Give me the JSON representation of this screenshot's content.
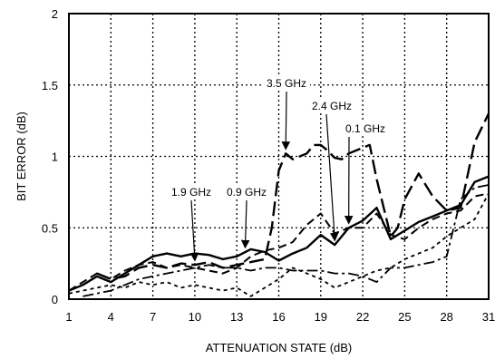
{
  "chart_data": {
    "type": "line",
    "xlabel": "ATTENUATION STATE (dB)",
    "ylabel": "BIT ERROR (dB)",
    "xlim": [
      1,
      31
    ],
    "ylim": [
      0,
      2
    ],
    "x_ticks": [
      "1",
      "4",
      "7",
      "10",
      "13",
      "16",
      "19",
      "22",
      "25",
      "28",
      "31"
    ],
    "y_ticks": [
      "0",
      "0.5",
      "1",
      "1.5",
      "2"
    ],
    "grid": true,
    "series": [
      {
        "dash": "solid",
        "points": [
          [
            1,
            0.06
          ],
          [
            2,
            0.1
          ],
          [
            3,
            0.16
          ],
          [
            4,
            0.12
          ],
          [
            5,
            0.18
          ],
          [
            6,
            0.24
          ],
          [
            7,
            0.3
          ],
          [
            8,
            0.32
          ],
          [
            9,
            0.3
          ],
          [
            10,
            0.32
          ],
          [
            11,
            0.31
          ],
          [
            12,
            0.28
          ],
          [
            13,
            0.3
          ],
          [
            14,
            0.35
          ],
          [
            15,
            0.33
          ],
          [
            16,
            0.27
          ],
          [
            17,
            0.32
          ],
          [
            18,
            0.36
          ],
          [
            19,
            0.45
          ],
          [
            20,
            0.38
          ],
          [
            21,
            0.5
          ],
          [
            22,
            0.55
          ],
          [
            23,
            0.64
          ],
          [
            24,
            0.42
          ],
          [
            25,
            0.48
          ],
          [
            26,
            0.54
          ],
          [
            27,
            0.58
          ],
          [
            28,
            0.62
          ],
          [
            29,
            0.66
          ],
          [
            30,
            0.82
          ],
          [
            31,
            0.86
          ]
        ]
      },
      {
        "dash": "long",
        "points": [
          [
            3,
            0.18
          ],
          [
            4,
            0.14
          ],
          [
            5,
            0.16
          ],
          [
            6,
            0.22
          ],
          [
            7,
            0.24
          ],
          [
            8,
            0.22
          ],
          [
            9,
            0.25
          ],
          [
            10,
            0.24
          ],
          [
            11,
            0.26
          ],
          [
            12,
            0.22
          ],
          [
            13,
            0.24
          ],
          [
            14,
            0.26
          ],
          [
            15,
            0.28
          ],
          [
            15.5,
            0.5
          ],
          [
            16,
            0.9
          ],
          [
            16.5,
            1.02
          ],
          [
            17,
            0.98
          ],
          [
            18,
            1.02
          ],
          [
            18.5,
            1.08
          ],
          [
            19,
            1.08
          ],
          [
            19.5,
            1.04
          ],
          [
            20,
            0.99
          ],
          [
            20.5,
            0.98
          ],
          [
            21,
            1.02
          ],
          [
            22,
            1.06
          ],
          [
            22.5,
            1.08
          ],
          [
            23,
            0.84
          ],
          [
            24,
            0.44
          ],
          [
            24.5,
            0.5
          ],
          [
            25,
            0.7
          ],
          [
            26,
            0.88
          ],
          [
            27,
            0.72
          ],
          [
            28,
            0.62
          ],
          [
            29,
            0.64
          ],
          [
            30,
            1.1
          ],
          [
            31,
            1.3
          ]
        ]
      },
      {
        "dash": "medium",
        "points": [
          [
            1,
            0.06
          ],
          [
            3,
            0.18
          ],
          [
            4,
            0.14
          ],
          [
            5,
            0.2
          ],
          [
            6,
            0.24
          ],
          [
            7,
            0.26
          ],
          [
            8,
            0.22
          ],
          [
            9,
            0.24
          ],
          [
            10,
            0.22
          ],
          [
            11,
            0.2
          ],
          [
            12,
            0.18
          ],
          [
            13,
            0.22
          ],
          [
            14,
            0.3
          ],
          [
            15,
            0.34
          ],
          [
            16,
            0.36
          ],
          [
            17,
            0.4
          ],
          [
            18,
            0.52
          ],
          [
            19,
            0.6
          ],
          [
            20,
            0.46
          ],
          [
            21,
            0.5
          ],
          [
            22,
            0.5
          ],
          [
            23,
            0.6
          ],
          [
            24,
            0.45
          ],
          [
            25,
            0.42
          ],
          [
            26,
            0.5
          ],
          [
            27,
            0.56
          ],
          [
            28,
            0.6
          ],
          [
            29,
            0.62
          ],
          [
            30,
            0.72
          ],
          [
            31,
            0.74
          ]
        ]
      },
      {
        "dash": "short",
        "points": [
          [
            1,
            0.04
          ],
          [
            2,
            0.06
          ],
          [
            3,
            0.08
          ],
          [
            4,
            0.1
          ],
          [
            5,
            0.08
          ],
          [
            6,
            0.12
          ],
          [
            7,
            0.1
          ],
          [
            8,
            0.12
          ],
          [
            9,
            0.08
          ],
          [
            10,
            0.1
          ],
          [
            11,
            0.08
          ],
          [
            12,
            0.06
          ],
          [
            13,
            0.08
          ],
          [
            14,
            0.02
          ],
          [
            15,
            0.08
          ],
          [
            16,
            0.14
          ],
          [
            17,
            0.22
          ],
          [
            18,
            0.18
          ],
          [
            19,
            0.14
          ],
          [
            20,
            0.08
          ],
          [
            21,
            0.12
          ],
          [
            22,
            0.16
          ],
          [
            23,
            0.2
          ],
          [
            24,
            0.22
          ],
          [
            25,
            0.28
          ],
          [
            26,
            0.32
          ],
          [
            27,
            0.36
          ],
          [
            28,
            0.44
          ],
          [
            29,
            0.5
          ],
          [
            30,
            0.56
          ],
          [
            31,
            0.74
          ]
        ]
      },
      {
        "dash": "dashdot",
        "points": [
          [
            2,
            0.02
          ],
          [
            3,
            0.04
          ],
          [
            4,
            0.06
          ],
          [
            5,
            0.1
          ],
          [
            6,
            0.14
          ],
          [
            7,
            0.16
          ],
          [
            8,
            0.18
          ],
          [
            9,
            0.2
          ],
          [
            10,
            0.22
          ],
          [
            11,
            0.24
          ],
          [
            12,
            0.22
          ],
          [
            13,
            0.22
          ],
          [
            14,
            0.2
          ],
          [
            15,
            0.22
          ],
          [
            16,
            0.22
          ],
          [
            17,
            0.2
          ],
          [
            18,
            0.2
          ],
          [
            19,
            0.2
          ],
          [
            20,
            0.18
          ],
          [
            21,
            0.18
          ],
          [
            22,
            0.16
          ],
          [
            23,
            0.12
          ],
          [
            24,
            0.22
          ],
          [
            25,
            0.22
          ],
          [
            26,
            0.24
          ],
          [
            27,
            0.26
          ],
          [
            28,
            0.3
          ],
          [
            29,
            0.7
          ],
          [
            30,
            0.78
          ],
          [
            31,
            0.8
          ]
        ]
      }
    ],
    "annotations": [
      {
        "text": "3.5 GHz",
        "arrow_to": [
          16.5,
          1.02
        ]
      },
      {
        "text": "2.4 GHz",
        "arrow_to": [
          20,
          0.38
        ]
      },
      {
        "text": "0.1 GHz",
        "arrow_to": [
          21,
          0.5
        ]
      },
      {
        "text": "1.9 GHz",
        "arrow_to": [
          10,
          0.24
        ]
      },
      {
        "text": "0.9 GHz",
        "arrow_to": [
          13.6,
          0.33
        ]
      }
    ]
  }
}
